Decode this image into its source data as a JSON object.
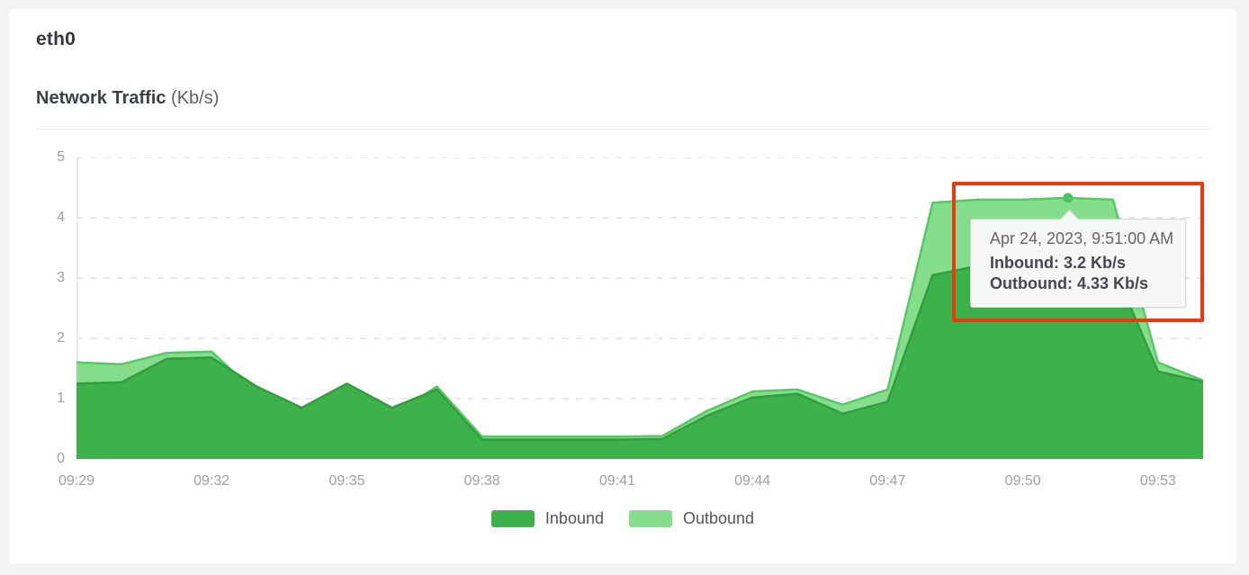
{
  "header": {
    "title": "eth0",
    "subtitle": "Network Traffic",
    "subtitle_unit": "(Kb/s)"
  },
  "tooltip": {
    "timestamp": "Apr 24, 2023, 9:51:00 AM",
    "inbound_line": "Inbound: 3.2 Kb/s",
    "outbound_line": "Outbound: 4.33 Kb/s"
  },
  "legend": {
    "inbound_label": "Inbound",
    "outbound_label": "Outbound"
  },
  "colors": {
    "page_bg": "#f3f4f6",
    "card_bg": "#ffffff",
    "inbound_fill": "#3db24a",
    "inbound_line": "#2f9e3c",
    "outbound_fill": "#85de8b",
    "outbound_line": "#56c964",
    "marker": "#4cc75e",
    "highlight_red": "#e93b12",
    "grid": "#e1e2e3",
    "axis_text": "#9ba0a4",
    "tooltip_bg": "#f6f7f7",
    "tooltip_border": "#d2d4d5"
  },
  "chart_data": {
    "type": "area",
    "title": "Network Traffic (Kb/s)",
    "x": [
      "09:29",
      "09:30",
      "09:31",
      "09:32",
      "09:33",
      "09:34",
      "09:35",
      "09:36",
      "09:37",
      "09:38",
      "09:39",
      "09:40",
      "09:41",
      "09:42",
      "09:43",
      "09:44",
      "09:45",
      "09:46",
      "09:47",
      "09:48",
      "09:49",
      "09:50",
      "09:51",
      "09:52",
      "09:53",
      "09:54"
    ],
    "series": [
      {
        "name": "Inbound",
        "fill": "#3db24a",
        "line": "#2f9e3c",
        "values": [
          1.25,
          1.27,
          1.66,
          1.68,
          1.2,
          0.85,
          1.25,
          0.85,
          1.15,
          0.32,
          0.32,
          0.32,
          0.32,
          0.33,
          0.72,
          1.02,
          1.08,
          0.75,
          0.95,
          3.05,
          3.2,
          3.2,
          3.2,
          3.2,
          1.45,
          1.28
        ]
      },
      {
        "name": "Outbound",
        "fill": "#85de8b",
        "line": "#56c964",
        "values": [
          1.6,
          1.57,
          1.76,
          1.78,
          1.08,
          0.7,
          1.13,
          0.72,
          1.2,
          0.37,
          0.37,
          0.37,
          0.37,
          0.38,
          0.8,
          1.12,
          1.15,
          0.9,
          1.15,
          4.25,
          4.3,
          4.3,
          4.33,
          4.3,
          1.6,
          1.3
        ]
      }
    ],
    "ylim": [
      0,
      5
    ],
    "yticks": [
      0,
      1,
      2,
      3,
      4,
      5
    ],
    "xtick_labels": [
      "09:29",
      "09:32",
      "09:35",
      "09:38",
      "09:41",
      "09:44",
      "09:47",
      "09:50",
      "09:53"
    ],
    "legend_position": "bottom",
    "grid": "horizontal-dashed",
    "highlight_point": {
      "x": "09:51",
      "series": "Outbound",
      "inbound": 3.2,
      "outbound": 4.33
    }
  }
}
